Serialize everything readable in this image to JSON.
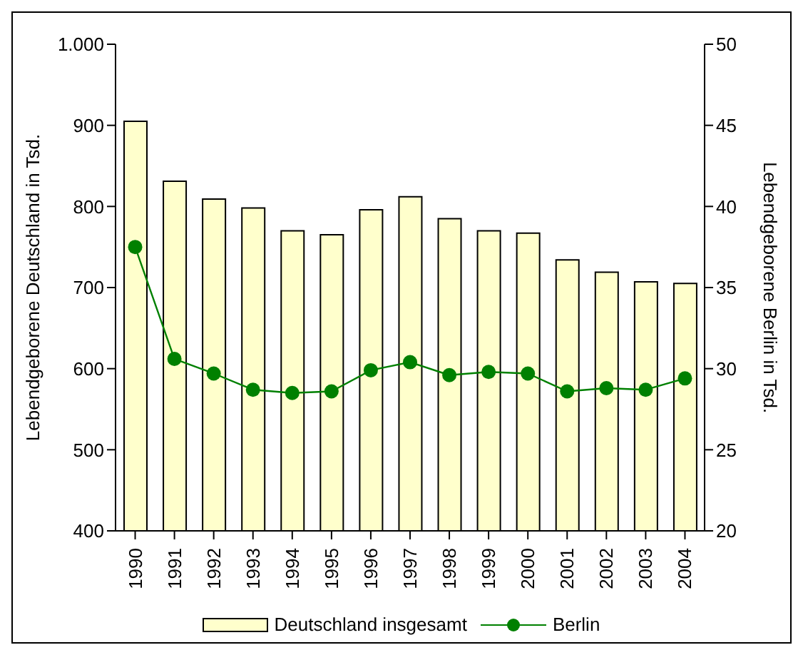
{
  "chart_data": {
    "type": "bar",
    "ylabel": "Lebendgeborene Deutschland in Tsd.",
    "y2label": "Lebendgeborene Berlin in Tsd.",
    "categories": [
      "1990",
      "1991",
      "1992",
      "1993",
      "1994",
      "1995",
      "1996",
      "1997",
      "1998",
      "1999",
      "2000",
      "2001",
      "2002",
      "2003",
      "2004"
    ],
    "series": [
      {
        "name": "Deutschland insgesamt",
        "color": "#ffffcc",
        "values": [
          905,
          831,
          809,
          798,
          770,
          765,
          796,
          812,
          785,
          770,
          767,
          734,
          719,
          707,
          705
        ]
      },
      {
        "name": "Berlin",
        "type": "line",
        "axis": "y2",
        "color": "#008000",
        "marker": "circle",
        "values": [
          37.5,
          30.6,
          29.7,
          28.7,
          28.5,
          28.6,
          29.9,
          30.4,
          29.6,
          29.8,
          29.7,
          28.6,
          28.8,
          28.7,
          29.4
        ]
      }
    ],
    "ylim": [
      400,
      1000
    ],
    "yticks": [
      400,
      500,
      600,
      700,
      800,
      900,
      {
        "value": 1000,
        "label": "1.000"
      }
    ],
    "y2lim": [
      20,
      50
    ],
    "y2ticks": [
      20,
      25,
      30,
      35,
      40,
      45,
      50
    ],
    "grid": false,
    "legend": "bottom"
  }
}
